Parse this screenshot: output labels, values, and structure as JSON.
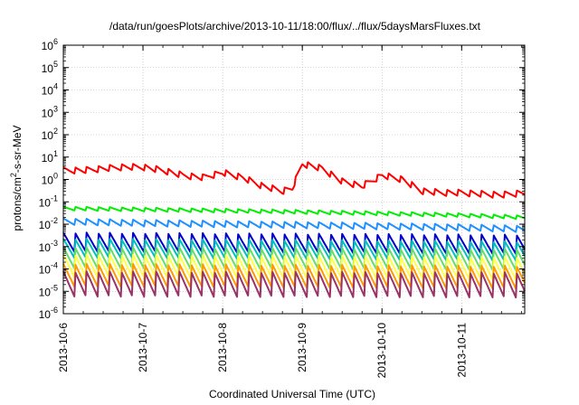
{
  "chart_data": {
    "type": "line",
    "title": "/data/run/goesPlots/archive/2013-10-11/18:00/flux/../flux/5daysMarsFluxes.txt",
    "xlabel": "Coordinated Universal Time (UTC)",
    "ylabel": "protons/cm2-s-sr-MeV",
    "x_ticks": [
      "2013-10-6",
      "2013-10-7",
      "2013-10-8",
      "2013-10-9",
      "2013-10-10",
      "2013-10-11"
    ],
    "xlim": [
      "2013-10-06 00:00",
      "2013-10-11 19:00"
    ],
    "y_scale": "log",
    "ylim": [
      1e-06,
      1000000.0
    ],
    "y_tick_exponents": [
      -6,
      -5,
      -4,
      -3,
      -2,
      -1,
      0,
      1,
      2,
      3,
      4,
      5,
      6
    ],
    "grid": true,
    "legend": "none",
    "sawtooth_period_hours": 3.5,
    "series": [
      {
        "color": "#ff0000",
        "x": [
          "2013-10-06 00:00",
          "2013-10-06 06:00",
          "2013-10-06 12:00",
          "2013-10-06 18:00",
          "2013-10-07 00:00",
          "2013-10-07 06:00",
          "2013-10-07 12:00",
          "2013-10-07 18:00",
          "2013-10-08 00:00",
          "2013-10-08 06:00",
          "2013-10-08 12:00",
          "2013-10-08 18:00",
          "2013-10-08 21:00",
          "2013-10-09 00:00",
          "2013-10-09 06:00",
          "2013-10-09 12:00",
          "2013-10-09 18:00",
          "2013-10-10 00:00",
          "2013-10-10 06:00",
          "2013-10-10 12:00",
          "2013-10-10 18:00",
          "2013-10-11 00:00",
          "2013-10-11 06:00",
          "2013-10-11 12:00",
          "2013-10-11 19:00"
        ],
        "values": [
          2.5,
          2.5,
          3,
          3.5,
          3.5,
          2.5,
          1.5,
          1.2,
          2,
          1.2,
          0.5,
          0.3,
          0.4,
          5,
          3,
          0.8,
          0.5,
          1.5,
          1.0,
          0.3,
          0.25,
          0.25,
          0.22,
          0.2,
          0.25
        ],
        "amplitude": 2.0
      },
      {
        "color": "#00ee00",
        "x": [
          "2013-10-06 00:00",
          "2013-10-07 00:00",
          "2013-10-08 00:00",
          "2013-10-09 00:00",
          "2013-10-10 00:00",
          "2013-10-11 00:00",
          "2013-10-11 19:00"
        ],
        "values": [
          0.05,
          0.045,
          0.04,
          0.035,
          0.03,
          0.025,
          0.02
        ],
        "amplitude": 1.5
      },
      {
        "color": "#1e90ff",
        "x": [
          "2013-10-06 00:00",
          "2013-10-07 00:00",
          "2013-10-08 00:00",
          "2013-10-09 00:00",
          "2013-10-10 00:00",
          "2013-10-11 00:00",
          "2013-10-11 19:00"
        ],
        "values": [
          0.013,
          0.011,
          0.01,
          0.009,
          0.008,
          0.007,
          0.006
        ],
        "amplitude": 2.0
      },
      {
        "color": "#0000cc",
        "x": [
          "2013-10-06 00:00",
          "2013-10-11 19:00"
        ],
        "values": [
          0.0015,
          0.0012
        ],
        "amplitude": 8.0
      },
      {
        "color": "#00bfbf",
        "x": [
          "2013-10-06 00:00",
          "2013-10-11 19:00"
        ],
        "values": [
          0.0008,
          0.0006
        ],
        "amplitude": 8.0
      },
      {
        "color": "#66dd66",
        "x": [
          "2013-10-06 00:00",
          "2013-10-11 19:00"
        ],
        "values": [
          0.0003,
          0.00025
        ],
        "amplitude": 10.0
      },
      {
        "color": "#ffff44",
        "x": [
          "2013-10-06 00:00",
          "2013-10-11 19:00"
        ],
        "values": [
          0.00013,
          0.0001
        ],
        "amplitude": 12.0
      },
      {
        "color": "#ff9900",
        "x": [
          "2013-10-06 00:00",
          "2013-10-11 19:00"
        ],
        "values": [
          5e-05,
          4e-05
        ],
        "amplitude": 12.0
      },
      {
        "color": "#993366",
        "x": [
          "2013-10-06 00:00",
          "2013-10-11 19:00"
        ],
        "values": [
          2e-05,
          1.8e-05
        ],
        "amplitude": 15.0
      }
    ]
  }
}
